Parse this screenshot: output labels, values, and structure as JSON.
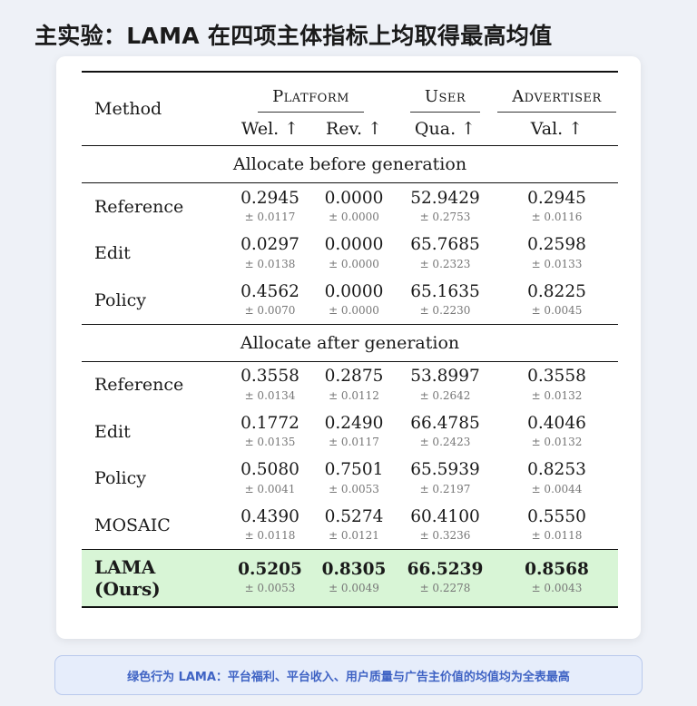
{
  "page": {
    "title": "主实验：LAMA 在四项主体指标上均取得最高均值"
  },
  "table": {
    "method_header": "Method",
    "groups": [
      {
        "label": "Platform"
      },
      {
        "label": "User"
      },
      {
        "label": "Advertiser"
      }
    ],
    "metrics": [
      "Wel. ↑",
      "Rev. ↑",
      "Qua. ↑",
      "Val. ↑"
    ],
    "sections": [
      {
        "title": "Allocate before generation",
        "rows": [
          {
            "method": "Reference",
            "cells": [
              {
                "v": "0.2945",
                "s": "± 0.0117"
              },
              {
                "v": "0.0000",
                "s": "± 0.0000"
              },
              {
                "v": "52.9429",
                "s": "± 0.2753"
              },
              {
                "v": "0.2945",
                "s": "± 0.0116"
              }
            ]
          },
          {
            "method": "Edit",
            "cells": [
              {
                "v": "0.0297",
                "s": "± 0.0138"
              },
              {
                "v": "0.0000",
                "s": "± 0.0000"
              },
              {
                "v": "65.7685",
                "s": "± 0.2323"
              },
              {
                "v": "0.2598",
                "s": "± 0.0133"
              }
            ]
          },
          {
            "method": "Policy",
            "cells": [
              {
                "v": "0.4562",
                "s": "± 0.0070"
              },
              {
                "v": "0.0000",
                "s": "± 0.0000"
              },
              {
                "v": "65.1635",
                "s": "± 0.2230"
              },
              {
                "v": "0.8225",
                "s": "± 0.0045"
              }
            ]
          }
        ]
      },
      {
        "title": "Allocate after generation",
        "rows": [
          {
            "method": "Reference",
            "cells": [
              {
                "v": "0.3558",
                "s": "± 0.0134"
              },
              {
                "v": "0.2875",
                "s": "± 0.0112"
              },
              {
                "v": "53.8997",
                "s": "± 0.2642"
              },
              {
                "v": "0.3558",
                "s": "± 0.0132"
              }
            ]
          },
          {
            "method": "Edit",
            "cells": [
              {
                "v": "0.1772",
                "s": "± 0.0135"
              },
              {
                "v": "0.2490",
                "s": "± 0.0117"
              },
              {
                "v": "66.4785",
                "s": "± 0.2423"
              },
              {
                "v": "0.4046",
                "s": "± 0.0132"
              }
            ]
          },
          {
            "method": "Policy",
            "cells": [
              {
                "v": "0.5080",
                "s": "± 0.0041"
              },
              {
                "v": "0.7501",
                "s": "± 0.0053"
              },
              {
                "v": "65.5939",
                "s": "± 0.2197"
              },
              {
                "v": "0.8253",
                "s": "± 0.0044"
              }
            ]
          },
          {
            "method": "MOSAIC",
            "cells": [
              {
                "v": "0.4390",
                "s": "± 0.0118"
              },
              {
                "v": "0.5274",
                "s": "± 0.0121"
              },
              {
                "v": "60.4100",
                "s": "± 0.3236"
              },
              {
                "v": "0.5550",
                "s": "± 0.0118"
              }
            ]
          }
        ]
      }
    ],
    "best": {
      "method": "LAMA (Ours)",
      "highlight_color": "#d8f5d6",
      "cells": [
        {
          "v": "0.5205",
          "s": "± 0.0053"
        },
        {
          "v": "0.8305",
          "s": "± 0.0049"
        },
        {
          "v": "66.5239",
          "s": "± 0.2278"
        },
        {
          "v": "0.8568",
          "s": "± 0.0043"
        }
      ]
    }
  },
  "note": {
    "text": "绿色行为 LAMA：平台福利、平台收入、用户质量与广告主价值的均值均为全表最高"
  }
}
